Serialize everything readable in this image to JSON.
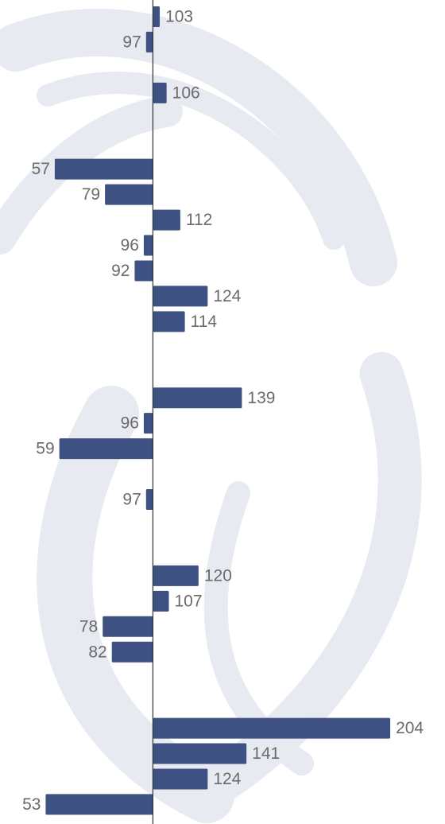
{
  "chart_data": {
    "type": "hbar",
    "baseline": 100,
    "color": "#3d5282",
    "xlim": [
      33,
      228
    ],
    "values": [
      103,
      97,
      null,
      106,
      null,
      null,
      57,
      79,
      112,
      96,
      92,
      124,
      114,
      null,
      null,
      139,
      96,
      59,
      null,
      97,
      null,
      null,
      120,
      107,
      78,
      82,
      null,
      null,
      204,
      141,
      124,
      53
    ]
  }
}
